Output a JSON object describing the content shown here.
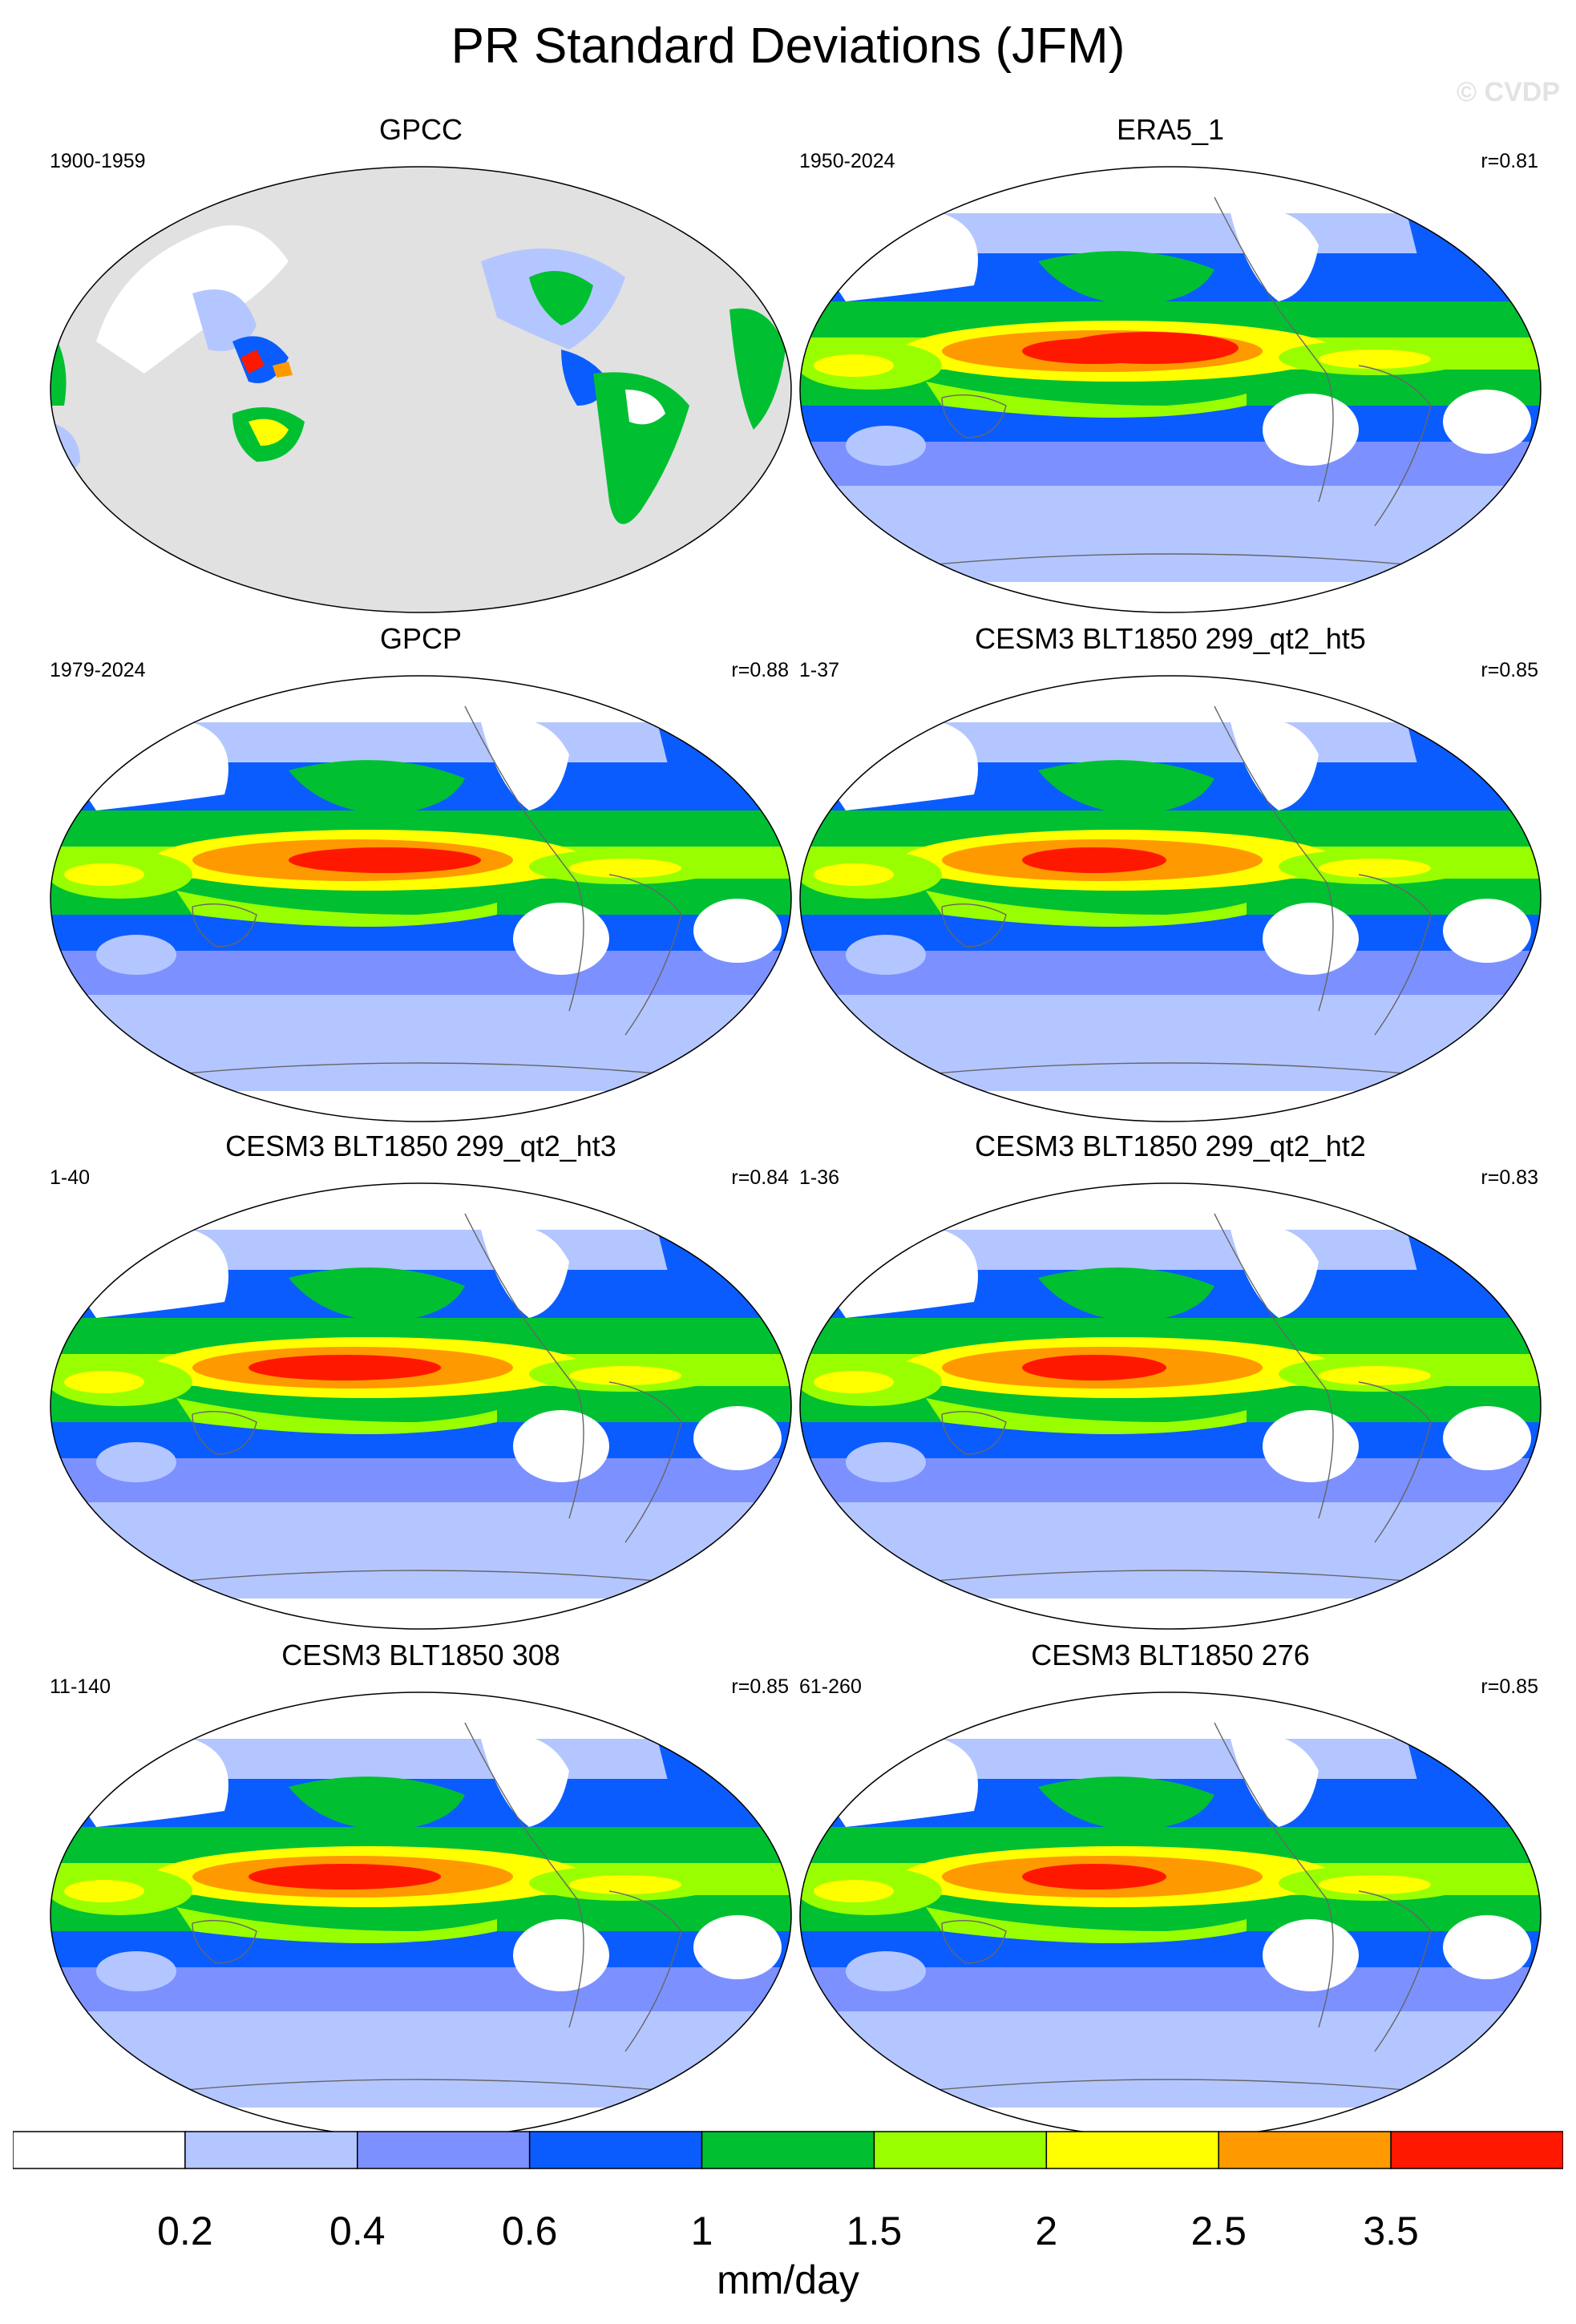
{
  "page": {
    "title": "PR Standard Deviations (JFM)",
    "watermark": "© CVDP"
  },
  "panels": [
    {
      "title": "GPCC",
      "period": "1900-1959",
      "r": "",
      "style": "obs-land"
    },
    {
      "title": "ERA5_1",
      "period": "1950-2024",
      "r": "r=0.81",
      "style": "reanalysis"
    },
    {
      "title": "GPCP",
      "period": "1979-2024",
      "r": "r=0.88",
      "style": "obs"
    },
    {
      "title": "CESM3 BLT1850 299_qt2_ht5",
      "period": "1-37",
      "r": "r=0.85",
      "style": "model"
    },
    {
      "title": "CESM3 BLT1850 299_qt2_ht3",
      "period": "1-40",
      "r": "r=0.84",
      "style": "model-strong"
    },
    {
      "title": "CESM3 BLT1850 299_qt2_ht2",
      "period": "1-36",
      "r": "r=0.83",
      "style": "model"
    },
    {
      "title": "CESM3 BLT1850 308",
      "period": "11-140",
      "r": "r=0.85",
      "style": "model-strong"
    },
    {
      "title": "CESM3 BLT1850 276",
      "period": "61-260",
      "r": "r=0.85",
      "style": "model"
    }
  ],
  "colorbar": {
    "colors": [
      "#ffffff",
      "#b4c6ff",
      "#7c91ff",
      "#0a5cff",
      "#00c032",
      "#99ff00",
      "#ffff00",
      "#ff9900",
      "#ff1800"
    ],
    "labels": [
      "0.2",
      "0.4",
      "0.6",
      "1",
      "1.5",
      "2",
      "2.5",
      "3.5"
    ],
    "units": "mm/day"
  },
  "land_fill": "#e1e1e1"
}
